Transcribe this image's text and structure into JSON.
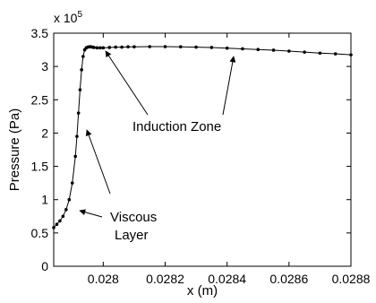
{
  "chart_data": {
    "type": "scatter",
    "xlabel": "x (m)",
    "ylabel": "Pressure (Pa)",
    "y_multiplier_label": "x 10",
    "y_multiplier_exponent": "5",
    "xlim": [
      0.02784,
      0.0288
    ],
    "ylim": [
      0,
      3.5
    ],
    "x_ticks": [
      0.028,
      0.0282,
      0.0284,
      0.0286,
      0.0288
    ],
    "x_tick_labels": [
      "0.028",
      "0.0282",
      "0.0284",
      "0.0286",
      "0.0288"
    ],
    "y_ticks": [
      0,
      0.5,
      1,
      1.5,
      2,
      2.5,
      3,
      3.5
    ],
    "y_tick_labels": [
      "0",
      "0.5",
      "1",
      "1.5",
      "2",
      "2.5",
      "3",
      "3.5"
    ],
    "grid": false,
    "series": [
      {
        "marker": "dot",
        "color": "#000000",
        "connected": true,
        "x": [
          0.02784,
          0.02785,
          0.02786,
          0.02787,
          0.02788,
          0.02789,
          0.0279,
          0.02791,
          0.027915,
          0.02792,
          0.027925,
          0.02793,
          0.027935,
          0.02794,
          0.027945,
          0.02795,
          0.027955,
          0.02796,
          0.027965,
          0.02797,
          0.02798,
          0.02799,
          0.028,
          0.02802,
          0.02804,
          0.02806,
          0.02808,
          0.0281,
          0.02815,
          0.0282,
          0.02825,
          0.0283,
          0.02835,
          0.0284,
          0.02845,
          0.0285,
          0.02855,
          0.0286,
          0.02865,
          0.0287,
          0.02875,
          0.0288
        ],
        "y": [
          0.58,
          0.63,
          0.68,
          0.75,
          0.85,
          1.0,
          1.25,
          1.65,
          1.95,
          2.3,
          2.65,
          2.95,
          3.15,
          3.25,
          3.28,
          3.29,
          3.295,
          3.295,
          3.29,
          3.285,
          3.28,
          3.28,
          3.28,
          3.285,
          3.29,
          3.29,
          3.295,
          3.295,
          3.298,
          3.298,
          3.295,
          3.29,
          3.285,
          3.275,
          3.265,
          3.255,
          3.245,
          3.23,
          3.215,
          3.2,
          3.19,
          3.175
        ]
      }
    ],
    "annotations": [
      {
        "lines": [
          "Induction Zone"
        ]
      },
      {
        "lines": [
          "Viscous",
          "Layer"
        ]
      }
    ]
  }
}
